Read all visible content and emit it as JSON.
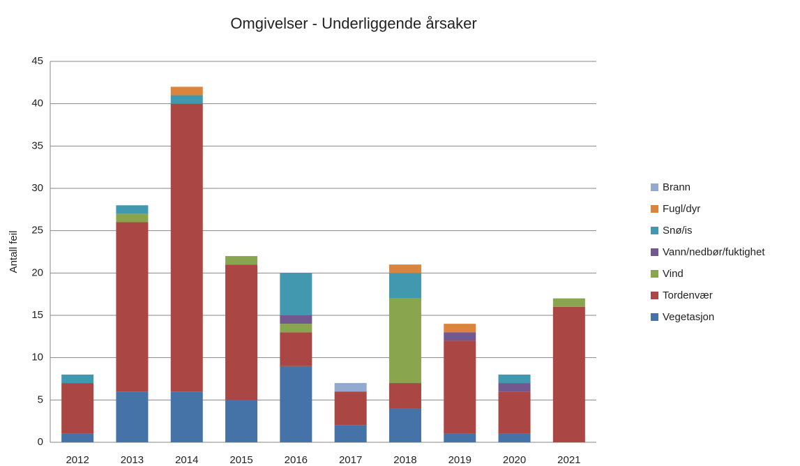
{
  "chart_data": {
    "type": "stacked_bar",
    "title": "Omgivelser - Underliggende årsaker",
    "y_label": "Antall feil",
    "categories": [
      "2012",
      "2013",
      "2014",
      "2015",
      "2016",
      "2017",
      "2018",
      "2019",
      "2020",
      "2021"
    ],
    "series": [
      {
        "name": "Vegetasjon",
        "color": "#4572a7",
        "values": [
          1,
          6,
          6,
          5,
          9,
          2,
          4,
          1,
          1,
          0
        ]
      },
      {
        "name": "Tordenvær",
        "color": "#aa4643",
        "values": [
          6,
          20,
          34,
          16,
          4,
          4,
          3,
          11,
          5,
          16
        ]
      },
      {
        "name": "Vind",
        "color": "#89a54e",
        "values": [
          0,
          1,
          0,
          1,
          1,
          0,
          10,
          0,
          0,
          1
        ]
      },
      {
        "name": "Vann/nedbør/fuktighet",
        "color": "#71588f",
        "values": [
          0,
          0,
          0,
          0,
          1,
          0,
          0,
          1,
          1,
          0
        ]
      },
      {
        "name": "Snø/is",
        "color": "#4198af",
        "values": [
          1,
          1,
          1,
          0,
          5,
          0,
          3,
          0,
          1,
          0
        ]
      },
      {
        "name": "Fugl/dyr",
        "color": "#db843d",
        "values": [
          0,
          0,
          1,
          0,
          0,
          0,
          1,
          1,
          0,
          0
        ]
      },
      {
        "name": "Brann",
        "color": "#93a9cf",
        "values": [
          0,
          0,
          0,
          0,
          0,
          1,
          0,
          0,
          0,
          0
        ]
      }
    ],
    "ylim": [
      0,
      45
    ],
    "yticks": [
      0,
      5,
      10,
      15,
      20,
      25,
      30,
      35,
      40,
      45
    ],
    "grid": true,
    "legend": "right"
  }
}
